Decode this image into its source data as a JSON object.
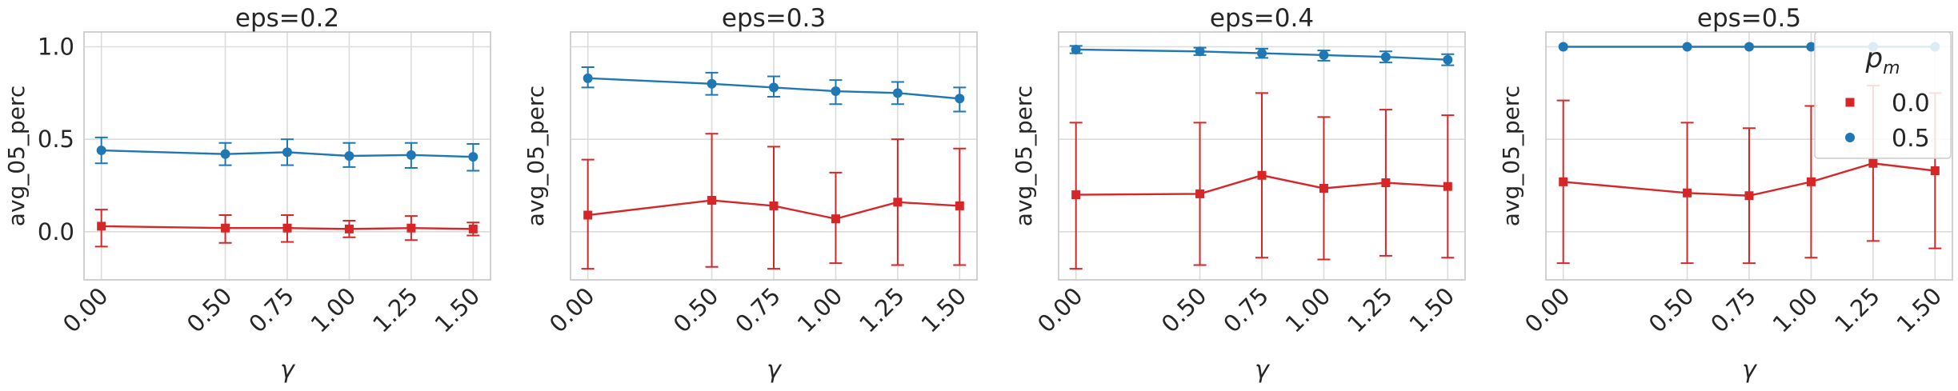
{
  "chart_data": [
    {
      "type": "line",
      "title": "eps=0.2",
      "xlabel": "γ",
      "ylabel": "avg_05_perc",
      "x": [
        0.0,
        0.5,
        0.75,
        1.0,
        1.25,
        1.5
      ],
      "x_tick_labels": [
        "0.00",
        "0.50",
        "0.75",
        "1.00",
        "1.25",
        "1.50"
      ],
      "xlim": [
        -0.07,
        1.57
      ],
      "ylim": [
        -0.26,
        1.08
      ],
      "y_ticks": [
        0.0,
        0.5,
        1.0
      ],
      "y_tick_labels": [
        "0.0",
        "0.5",
        "1.0"
      ],
      "grid": true,
      "series": [
        {
          "name": "0.0",
          "color": "#d62728",
          "marker": "square",
          "values": [
            0.03,
            0.02,
            0.02,
            0.015,
            0.02,
            0.015
          ],
          "err_low": [
            -0.08,
            -0.06,
            -0.055,
            -0.03,
            -0.045,
            -0.02
          ],
          "err_high": [
            0.12,
            0.09,
            0.09,
            0.06,
            0.085,
            0.05
          ]
        },
        {
          "name": "0.5",
          "color": "#1f77b4",
          "marker": "circle",
          "values": [
            0.44,
            0.42,
            0.43,
            0.41,
            0.415,
            0.405
          ],
          "err_low": [
            0.37,
            0.36,
            0.36,
            0.35,
            0.345,
            0.33
          ],
          "err_high": [
            0.51,
            0.48,
            0.5,
            0.48,
            0.48,
            0.475
          ]
        }
      ]
    },
    {
      "type": "line",
      "title": "eps=0.3",
      "xlabel": "γ",
      "ylabel": "avg_05_perc",
      "x": [
        0.0,
        0.5,
        0.75,
        1.0,
        1.25,
        1.5
      ],
      "x_tick_labels": [
        "0.00",
        "0.50",
        "0.75",
        "1.00",
        "1.25",
        "1.50"
      ],
      "xlim": [
        -0.07,
        1.57
      ],
      "ylim": [
        -0.26,
        1.08
      ],
      "y_ticks": [
        0.0,
        0.5,
        1.0
      ],
      "y_tick_labels": [],
      "grid": true,
      "series": [
        {
          "name": "0.0",
          "color": "#d62728",
          "marker": "square",
          "values": [
            0.09,
            0.17,
            0.14,
            0.07,
            0.16,
            0.14
          ],
          "err_low": [
            -0.2,
            -0.19,
            -0.2,
            -0.17,
            -0.18,
            -0.18
          ],
          "err_high": [
            0.39,
            0.53,
            0.46,
            0.32,
            0.5,
            0.45
          ]
        },
        {
          "name": "0.5",
          "color": "#1f77b4",
          "marker": "circle",
          "values": [
            0.83,
            0.8,
            0.78,
            0.76,
            0.75,
            0.72
          ],
          "err_low": [
            0.78,
            0.74,
            0.73,
            0.69,
            0.69,
            0.65
          ],
          "err_high": [
            0.89,
            0.86,
            0.84,
            0.82,
            0.81,
            0.78
          ]
        }
      ]
    },
    {
      "type": "line",
      "title": "eps=0.4",
      "xlabel": "γ",
      "ylabel": "avg_05_perc",
      "x": [
        0.0,
        0.5,
        0.75,
        1.0,
        1.25,
        1.5
      ],
      "x_tick_labels": [
        "0.00",
        "0.50",
        "0.75",
        "1.00",
        "1.25",
        "1.50"
      ],
      "xlim": [
        -0.07,
        1.57
      ],
      "ylim": [
        -0.26,
        1.08
      ],
      "y_ticks": [
        0.0,
        0.5,
        1.0
      ],
      "y_tick_labels": [],
      "grid": true,
      "series": [
        {
          "name": "0.0",
          "color": "#d62728",
          "marker": "square",
          "values": [
            0.2,
            0.205,
            0.305,
            0.235,
            0.265,
            0.245
          ],
          "err_low": [
            -0.2,
            -0.18,
            -0.14,
            -0.15,
            -0.13,
            -0.14
          ],
          "err_high": [
            0.59,
            0.59,
            0.75,
            0.62,
            0.66,
            0.63
          ]
        },
        {
          "name": "0.5",
          "color": "#1f77b4",
          "marker": "circle",
          "values": [
            0.985,
            0.975,
            0.965,
            0.955,
            0.945,
            0.93
          ],
          "err_low": [
            0.965,
            0.955,
            0.94,
            0.925,
            0.915,
            0.9
          ],
          "err_high": [
            1.005,
            0.995,
            0.99,
            0.98,
            0.975,
            0.96
          ]
        }
      ]
    },
    {
      "type": "line",
      "title": "eps=0.5",
      "xlabel": "γ",
      "ylabel": "avg_05_perc",
      "x": [
        0.0,
        0.5,
        0.75,
        1.0,
        1.25,
        1.5
      ],
      "x_tick_labels": [
        "0.00",
        "0.50",
        "0.75",
        "1.00",
        "1.25",
        "1.50"
      ],
      "xlim": [
        -0.07,
        1.57
      ],
      "ylim": [
        -0.26,
        1.08
      ],
      "y_ticks": [
        0.0,
        0.5,
        1.0
      ],
      "y_tick_labels": [],
      "grid": true,
      "legend": {
        "title": "p_m",
        "title_main": "p",
        "title_sub": "m",
        "position": "upper right",
        "entries": [
          "0.0",
          "0.5"
        ]
      },
      "series": [
        {
          "name": "0.0",
          "color": "#d62728",
          "marker": "square",
          "values": [
            0.27,
            0.21,
            0.195,
            0.27,
            0.37,
            0.33
          ],
          "err_low": [
            -0.17,
            -0.17,
            -0.17,
            -0.14,
            -0.05,
            -0.09
          ],
          "err_high": [
            0.71,
            0.59,
            0.56,
            0.68,
            0.79,
            0.75
          ]
        },
        {
          "name": "0.5",
          "color": "#1f77b4",
          "marker": "circle",
          "values": [
            1.0,
            1.0,
            1.0,
            1.0,
            1.0,
            1.0
          ],
          "err_low": [
            1.0,
            1.0,
            1.0,
            1.0,
            1.0,
            1.0
          ],
          "err_high": [
            1.0,
            1.0,
            1.0,
            1.0,
            1.0,
            1.0
          ]
        }
      ]
    }
  ]
}
